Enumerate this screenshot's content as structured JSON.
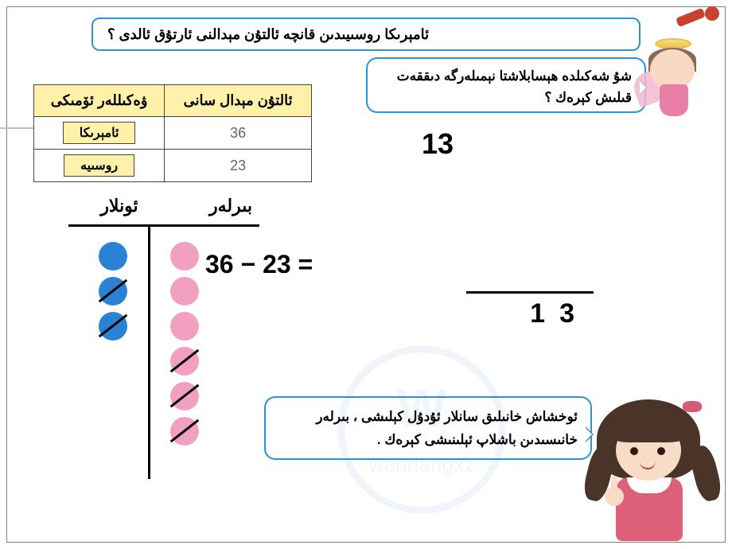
{
  "question": "ئامېرىكا روسىيىدىن قانچە ئالتۇن مېدالنى ئارتۇق ئالدى ؟",
  "fairy_text": "شۇ شەكىلدە ھېسابلاشتا نېمىلەرگە دىققەت قىلىش كېرەك ؟",
  "table": {
    "headers": {
      "country": "ۋەكىللەر ئۆمىكى",
      "gold": "ئالتۇن مېدال سانى"
    },
    "rows": [
      {
        "country": "ئامېرىكا",
        "value": "36"
      },
      {
        "country": "روسىيە",
        "value": "23"
      }
    ]
  },
  "pv": {
    "tens": "ئونلار",
    "ones": "بىرلەر"
  },
  "chart": {
    "tens": [
      {
        "color": "blue",
        "struck": false
      },
      {
        "color": "blue",
        "struck": true
      },
      {
        "color": "blue",
        "struck": true
      }
    ],
    "ones": [
      {
        "color": "pink",
        "struck": false
      },
      {
        "color": "pink",
        "struck": false
      },
      {
        "color": "pink",
        "struck": false
      },
      {
        "color": "pink",
        "struck": true
      },
      {
        "color": "pink",
        "struck": true
      },
      {
        "color": "pink",
        "struck": true
      }
    ]
  },
  "equation": "36 − 23 =",
  "answer": "13",
  "vsub": {
    "res_tens": "1",
    "res_ones": "3"
  },
  "bottom_text": "ئوخشاش خانىلىق سانلار ئۇدۇل كېلىشى ، بىرلەر خانىسىدىن باشلاپ ئېلىنىشى كېرەك ."
}
